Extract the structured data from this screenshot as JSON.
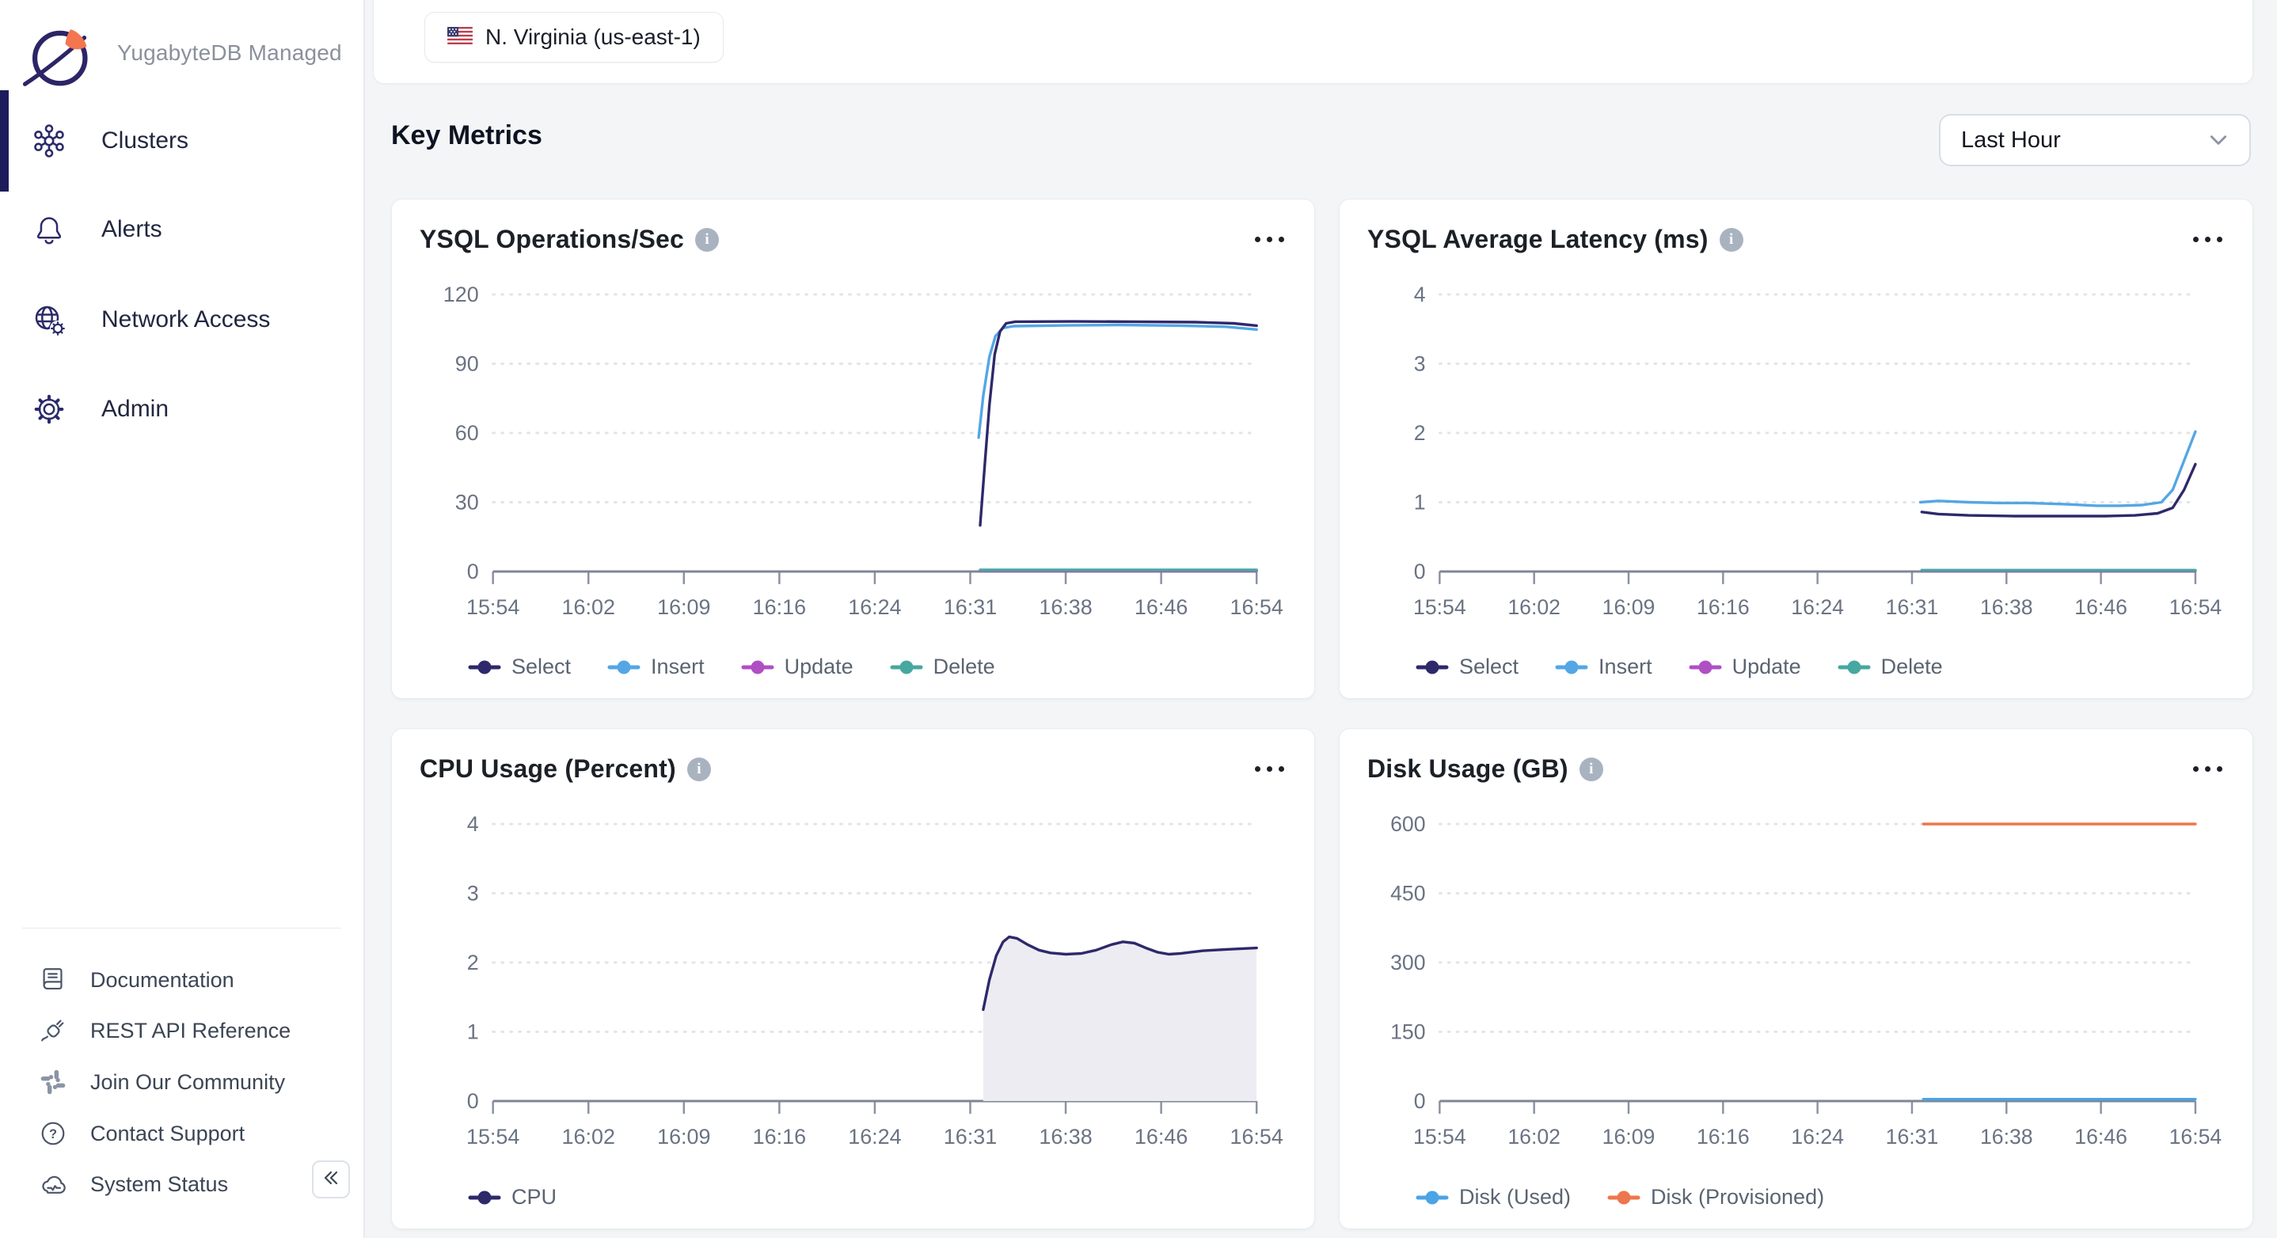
{
  "app": {
    "brand": "YugabyteDB Managed"
  },
  "sidebar": {
    "nav": [
      {
        "label": "Clusters",
        "icon": "clusters-icon",
        "active": true
      },
      {
        "label": "Alerts",
        "icon": "bell-icon",
        "active": false
      },
      {
        "label": "Network Access",
        "icon": "globe-gear-icon",
        "active": false
      },
      {
        "label": "Admin",
        "icon": "gear-icon",
        "active": false
      }
    ],
    "footer": [
      {
        "label": "Documentation",
        "icon": "book-icon"
      },
      {
        "label": "REST API Reference",
        "icon": "plug-icon"
      },
      {
        "label": "Join Our Community",
        "icon": "slack-icon"
      },
      {
        "label": "Contact Support",
        "icon": "question-circle-icon"
      },
      {
        "label": "System Status",
        "icon": "cloud-status-icon"
      }
    ],
    "collapse_icon": "collapse-left-icon"
  },
  "header": {
    "region": "N. Virginia (us-east-1)",
    "region_flag": "us-flag-icon"
  },
  "toolbar": {
    "heading": "Key Metrics",
    "time_range": "Last Hour",
    "chevron": "chevron-down-icon"
  },
  "colors": {
    "accent": "#2e296a",
    "select": "#2e296a",
    "insert": "#54a6e4",
    "update": "#b04fc4",
    "delete": "#47a8a1",
    "disk_used": "#4ba4e6",
    "disk_provisioned": "#ee764c",
    "cpu_fill": "#edecf3"
  },
  "chart_data": [
    {
      "type": "line",
      "title": "YSQL Operations/Sec",
      "x_ticks": [
        "15:54",
        "16:02",
        "16:09",
        "16:16",
        "16:24",
        "16:31",
        "16:38",
        "16:46",
        "16:54"
      ],
      "y_ticks": [
        120,
        90,
        60,
        30,
        0
      ],
      "ylim": [
        0,
        120
      ],
      "grid": "dotted",
      "legend_position": "bottom",
      "legend": [
        {
          "name": "Select",
          "color": "#2e296a"
        },
        {
          "name": "Insert",
          "color": "#54a6e4"
        },
        {
          "name": "Update",
          "color": "#b04fc4"
        },
        {
          "name": "Delete",
          "color": "#47a8a1"
        }
      ],
      "series": [
        {
          "name": "Update",
          "color": "#b04fc4",
          "points": [
            [
              0.638,
              0.3
            ],
            [
              1,
              0.3
            ]
          ]
        },
        {
          "name": "Delete",
          "color": "#47a8a1",
          "points": [
            [
              0.638,
              0.7
            ],
            [
              1,
              0.7
            ]
          ]
        },
        {
          "name": "Insert",
          "color": "#54a6e4",
          "points": [
            [
              0.636,
              58
            ],
            [
              0.642,
              76
            ],
            [
              0.65,
              93
            ],
            [
              0.658,
              102
            ],
            [
              0.668,
              105.5
            ],
            [
              0.682,
              106.3
            ],
            [
              0.75,
              106.6
            ],
            [
              0.82,
              106.8
            ],
            [
              0.9,
              106.5
            ],
            [
              0.96,
              106.0
            ],
            [
              1,
              104.8
            ]
          ]
        },
        {
          "name": "Select",
          "color": "#2e296a",
          "points": [
            [
              0.638,
              20
            ],
            [
              0.644,
              46
            ],
            [
              0.65,
              72
            ],
            [
              0.657,
              94
            ],
            [
              0.664,
              104
            ],
            [
              0.672,
              107.5
            ],
            [
              0.684,
              108.2
            ],
            [
              0.76,
              108.3
            ],
            [
              0.84,
              108.2
            ],
            [
              0.92,
              108.0
            ],
            [
              0.97,
              107.5
            ],
            [
              1,
              106.5
            ]
          ]
        }
      ]
    },
    {
      "type": "line",
      "title": "YSQL Average Latency (ms)",
      "x_ticks": [
        "15:54",
        "16:02",
        "16:09",
        "16:16",
        "16:24",
        "16:31",
        "16:38",
        "16:46",
        "16:54"
      ],
      "y_ticks": [
        4,
        3,
        2,
        1,
        0
      ],
      "ylim": [
        0,
        4
      ],
      "grid": "dotted",
      "legend_position": "bottom",
      "legend": [
        {
          "name": "Select",
          "color": "#2e296a"
        },
        {
          "name": "Insert",
          "color": "#54a6e4"
        },
        {
          "name": "Update",
          "color": "#b04fc4"
        },
        {
          "name": "Delete",
          "color": "#47a8a1"
        }
      ],
      "series": [
        {
          "name": "Update",
          "color": "#b04fc4",
          "points": [
            [
              0.638,
              0.01
            ],
            [
              1,
              0.01
            ]
          ]
        },
        {
          "name": "Delete",
          "color": "#47a8a1",
          "points": [
            [
              0.638,
              0.02
            ],
            [
              1,
              0.02
            ]
          ]
        },
        {
          "name": "Select",
          "color": "#2e296a",
          "points": [
            [
              0.638,
              0.86
            ],
            [
              0.66,
              0.83
            ],
            [
              0.7,
              0.81
            ],
            [
              0.76,
              0.8
            ],
            [
              0.82,
              0.8
            ],
            [
              0.88,
              0.8
            ],
            [
              0.92,
              0.81
            ],
            [
              0.95,
              0.84
            ],
            [
              0.97,
              0.92
            ],
            [
              0.985,
              1.18
            ],
            [
              1,
              1.55
            ]
          ]
        },
        {
          "name": "Insert",
          "color": "#54a6e4",
          "points": [
            [
              0.636,
              1.0
            ],
            [
              0.66,
              1.02
            ],
            [
              0.7,
              1.0
            ],
            [
              0.74,
              0.99
            ],
            [
              0.78,
              0.99
            ],
            [
              0.83,
              0.97
            ],
            [
              0.87,
              0.95
            ],
            [
              0.9,
              0.95
            ],
            [
              0.93,
              0.96
            ],
            [
              0.955,
              1.0
            ],
            [
              0.97,
              1.18
            ],
            [
              0.985,
              1.6
            ],
            [
              1,
              2.02
            ]
          ]
        }
      ]
    },
    {
      "type": "area",
      "title": "CPU Usage (Percent)",
      "x_ticks": [
        "15:54",
        "16:02",
        "16:09",
        "16:16",
        "16:24",
        "16:31",
        "16:38",
        "16:46",
        "16:54"
      ],
      "y_ticks": [
        4,
        3,
        2,
        1,
        0
      ],
      "ylim": [
        0,
        4
      ],
      "grid": "dotted",
      "legend_position": "bottom",
      "legend": [
        {
          "name": "CPU",
          "color": "#2e296a"
        }
      ],
      "series": [
        {
          "name": "CPU",
          "color": "#2e296a",
          "fill": "#edecf3",
          "points": [
            [
              0.642,
              1.32
            ],
            [
              0.65,
              1.75
            ],
            [
              0.659,
              2.1
            ],
            [
              0.668,
              2.3
            ],
            [
              0.676,
              2.37
            ],
            [
              0.686,
              2.35
            ],
            [
              0.7,
              2.26
            ],
            [
              0.715,
              2.18
            ],
            [
              0.73,
              2.14
            ],
            [
              0.75,
              2.12
            ],
            [
              0.77,
              2.13
            ],
            [
              0.79,
              2.18
            ],
            [
              0.81,
              2.26
            ],
            [
              0.825,
              2.3
            ],
            [
              0.84,
              2.28
            ],
            [
              0.855,
              2.21
            ],
            [
              0.87,
              2.15
            ],
            [
              0.885,
              2.12
            ],
            [
              0.9,
              2.13
            ],
            [
              0.93,
              2.17
            ],
            [
              0.96,
              2.19
            ],
            [
              1,
              2.21
            ]
          ]
        }
      ]
    },
    {
      "type": "line",
      "title": "Disk Usage (GB)",
      "x_ticks": [
        "15:54",
        "16:02",
        "16:09",
        "16:16",
        "16:24",
        "16:31",
        "16:38",
        "16:46",
        "16:54"
      ],
      "y_ticks": [
        600,
        450,
        300,
        150,
        0
      ],
      "ylim": [
        0,
        600
      ],
      "grid": "dotted",
      "legend_position": "bottom",
      "legend": [
        {
          "name": "Disk (Used)",
          "color": "#4ba4e6"
        },
        {
          "name": "Disk (Provisioned)",
          "color": "#ee764c"
        }
      ],
      "series": [
        {
          "name": "Disk (Used)",
          "color": "#4ba4e6",
          "points": [
            [
              0.64,
              4
            ],
            [
              1,
              4
            ]
          ]
        },
        {
          "name": "Disk (Provisioned)",
          "color": "#ee764c",
          "points": [
            [
              0.64,
              600
            ],
            [
              1,
              600
            ]
          ]
        }
      ]
    }
  ]
}
